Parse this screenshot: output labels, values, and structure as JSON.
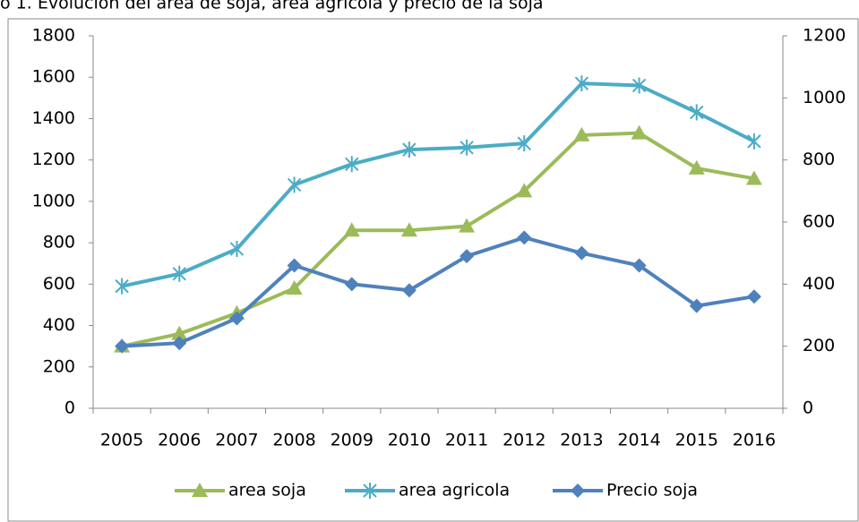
{
  "chart_data": {
    "type": "line",
    "title": "o 1. Evolución del área de soja, área agrícola y precio de la soja",
    "categories": [
      "2005",
      "2006",
      "2007",
      "2008",
      "2009",
      "2010",
      "2011",
      "2012",
      "2013",
      "2014",
      "2015",
      "2016"
    ],
    "series": [
      {
        "name": "area soja",
        "color": "#9bbb59",
        "marker": "triangle",
        "values": [
          300,
          360,
          460,
          580,
          860,
          860,
          880,
          1050,
          1320,
          1330,
          1160,
          1110
        ]
      },
      {
        "name": "area agricola",
        "color": "#4bacc6",
        "marker": "star",
        "values": [
          590,
          650,
          770,
          1080,
          1180,
          1250,
          1260,
          1280,
          1570,
          1560,
          1430,
          1290
        ]
      },
      {
        "name": "Precio soja",
        "color": "#4f81bd",
        "marker": "diamond",
        "axis": "y2",
        "values": [
          200,
          210,
          290,
          460,
          400,
          380,
          490,
          550,
          500,
          460,
          330,
          360
        ]
      }
    ],
    "ylim": [
      0,
      1800
    ],
    "yticks": [
      0,
      200,
      400,
      600,
      800,
      1000,
      1200,
      1400,
      1600,
      1800
    ],
    "y2lim": [
      0,
      1200
    ],
    "y2ticks": [
      0,
      200,
      400,
      600,
      800,
      1000,
      1200
    ],
    "legend": "bottom"
  }
}
